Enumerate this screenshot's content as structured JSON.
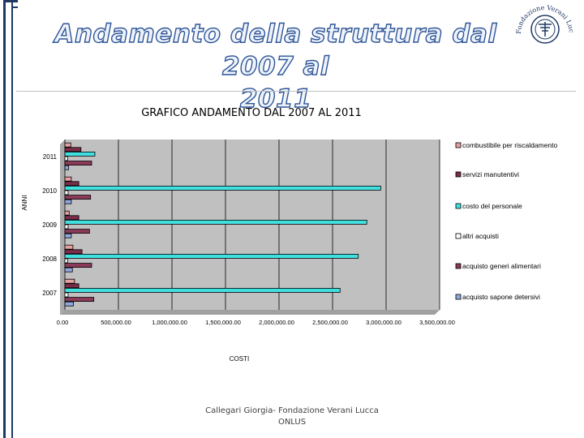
{
  "slide": {
    "title_line1": "Andamento della struttura dal 2007 al",
    "title_line2": "2011",
    "footer_line1": "Callegari Giorgia- Fondazione Verani Lucca",
    "footer_line2": "ONLUS",
    "logo_text": "Fondazione Verani Lucca"
  },
  "colors": {
    "title_fill": "#eef3fb",
    "title_outline": "#2e5597",
    "plot_area": "#c0c0c0",
    "frame": "#1f3864"
  },
  "chart_data": {
    "type": "bar",
    "orientation": "horizontal",
    "title": "GRAFICO ANDAMENTO DAL 2007 AL 2011",
    "xlabel": "COSTI",
    "ylabel": "ANNI",
    "categories": [
      "2007",
      "2008",
      "2009",
      "2010",
      "2011"
    ],
    "xlim": [
      0,
      3500000
    ],
    "x_ticks": [
      "0.00",
      "500,000.00",
      "1,000,000.00",
      "1,500,000.00",
      "2,000,000.00",
      "2,500,000.00",
      "3,000,000.00",
      "3,500,000.00"
    ],
    "grid": true,
    "legend_position": "right",
    "series": [
      {
        "name": "combustibile per riscaldamento",
        "color": "#e6a0a0",
        "values": [
          90000,
          75000,
          40000,
          60000,
          55000
        ]
      },
      {
        "name": "servizi manutentivi",
        "color": "#7b2c4a",
        "values": [
          130000,
          160000,
          130000,
          130000,
          150000
        ]
      },
      {
        "name": "costo del personale",
        "color": "#40e0e0",
        "values": [
          2570000,
          2740000,
          2820000,
          2950000,
          280000
        ]
      },
      {
        "name": "altri acquisti",
        "color": "#ffffff",
        "values": [
          30000,
          25000,
          30000,
          30000,
          25000
        ]
      },
      {
        "name": "acquisto generi alimentari",
        "color": "#8b3a5a",
        "values": [
          270000,
          250000,
          230000,
          240000,
          250000
        ]
      },
      {
        "name": "acquisto sapone detersivi",
        "color": "#8fa8e0",
        "values": [
          80000,
          70000,
          60000,
          60000,
          35000
        ]
      }
    ]
  }
}
